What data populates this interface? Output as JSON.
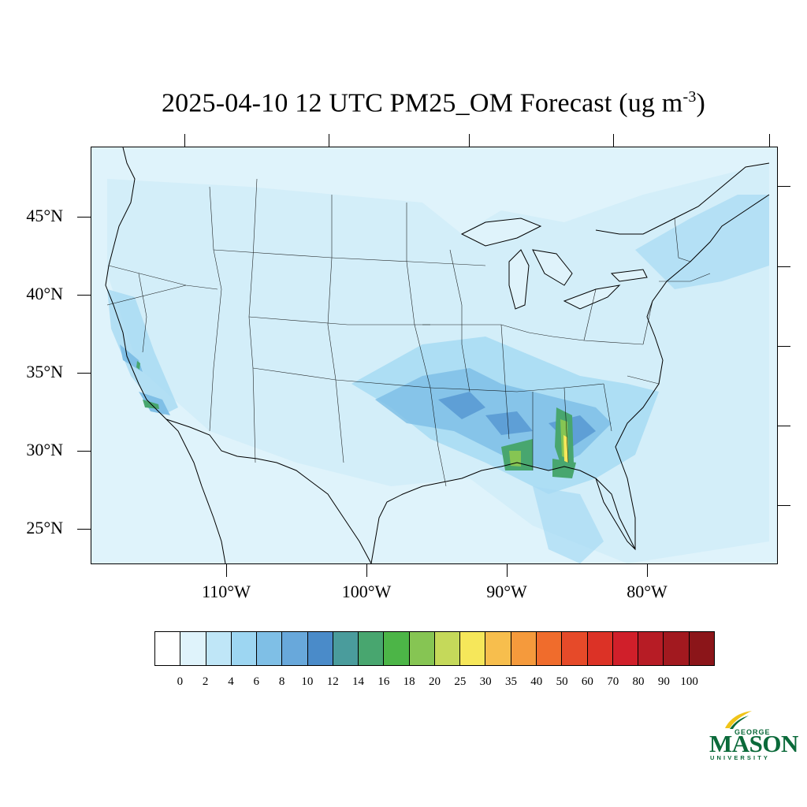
{
  "title": {
    "main": "2025-04-10 12 UTC PM25_OM Forecast (ug m",
    "exponent": "-3",
    "close": ")"
  },
  "axes": {
    "lat_labels": [
      "45°N",
      "40°N",
      "35°N",
      "30°N",
      "25°N"
    ],
    "lon_labels": [
      "110°W",
      "100°W",
      "90°W",
      "80°W"
    ]
  },
  "colorbar": {
    "labels": [
      "0",
      "2",
      "4",
      "6",
      "8",
      "10",
      "12",
      "14",
      "16",
      "18",
      "20",
      "25",
      "30",
      "35",
      "40",
      "50",
      "60",
      "70",
      "80",
      "90",
      "100"
    ],
    "colors": [
      "#ffffff",
      "#dff3fb",
      "#bfe6f7",
      "#9dd6f2",
      "#7fbfe6",
      "#68a8db",
      "#4a8bc9",
      "#4a9c9c",
      "#48a66f",
      "#4cb547",
      "#86c553",
      "#c5d95a",
      "#f6e75a",
      "#f7be4d",
      "#f59a3c",
      "#f06c2c",
      "#e64a29",
      "#dc3226",
      "#d01f2a",
      "#b71c25",
      "#a2191f",
      "#8b1519"
    ]
  },
  "logo": {
    "george": "GEORGE",
    "mason": "MASON",
    "university": "UNIVERSITY",
    "primary_color": "#0b6a3a",
    "accent_color": "#f0c419"
  },
  "map": {
    "ocean_color": "#dff3fb",
    "boundary_color": "#000000"
  }
}
